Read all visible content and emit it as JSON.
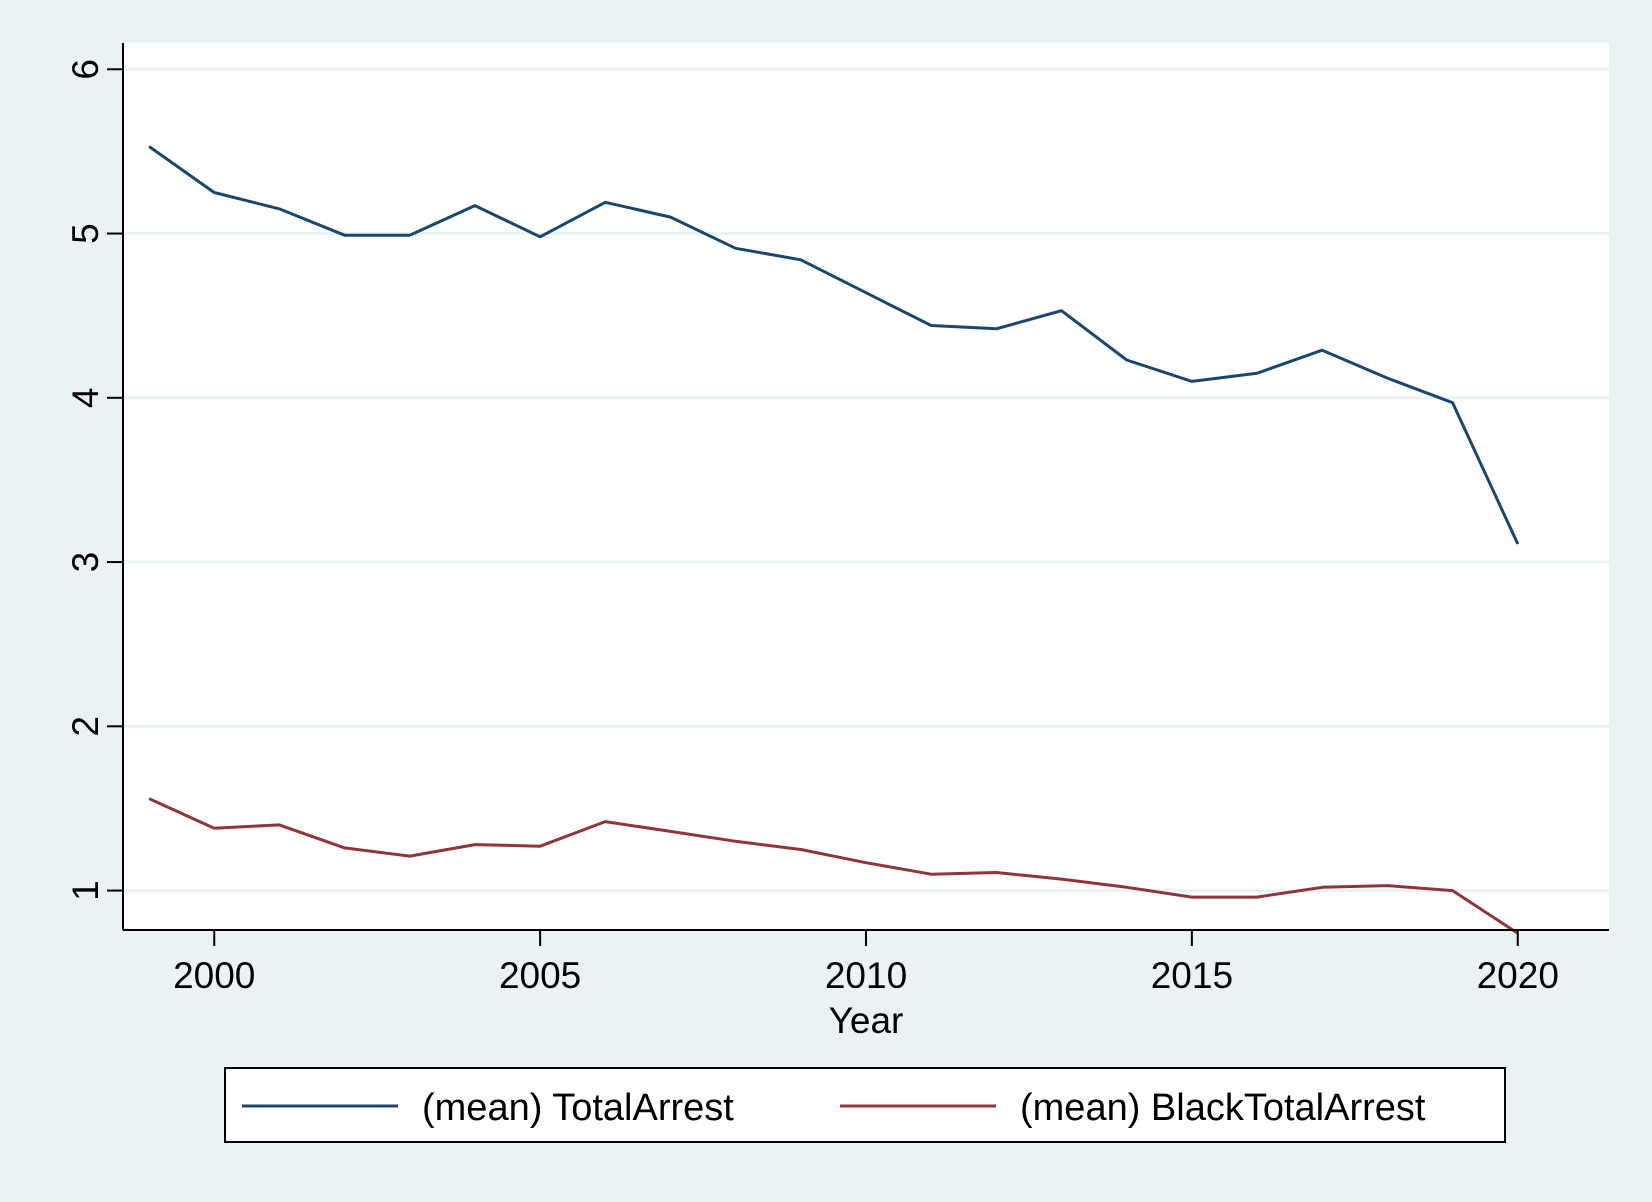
{
  "chart_data": {
    "type": "line",
    "title": "",
    "xlabel": "Year",
    "ylabel": "",
    "xlim": [
      1998.6,
      2021.4
    ],
    "ylim": [
      0.76,
      6.16
    ],
    "x_ticks": [
      2000,
      2005,
      2010,
      2015,
      2020
    ],
    "y_ticks": [
      1,
      2,
      3,
      4,
      5,
      6
    ],
    "grid": true,
    "legend_position": "bottom",
    "x": [
      1999,
      2000,
      2001,
      2002,
      2003,
      2004,
      2005,
      2006,
      2007,
      2008,
      2009,
      2010,
      2011,
      2012,
      2013,
      2014,
      2015,
      2016,
      2017,
      2018,
      2019,
      2020
    ],
    "series": [
      {
        "name": "(mean) TotalArrest",
        "color": "#1a476f",
        "values": [
          5.53,
          5.25,
          5.15,
          4.99,
          4.99,
          5.17,
          4.98,
          5.19,
          5.1,
          4.91,
          4.84,
          4.64,
          4.44,
          4.42,
          4.53,
          4.23,
          4.1,
          4.15,
          4.29,
          4.12,
          3.97,
          3.11
        ]
      },
      {
        "name": "(mean) BlackTotalArrest",
        "color": "#90353b",
        "values": [
          1.56,
          1.38,
          1.4,
          1.26,
          1.21,
          1.28,
          1.27,
          1.42,
          1.36,
          1.3,
          1.25,
          1.17,
          1.1,
          1.11,
          1.07,
          1.02,
          0.96,
          0.96,
          1.02,
          1.03,
          1.0,
          0.74
        ]
      }
    ]
  }
}
